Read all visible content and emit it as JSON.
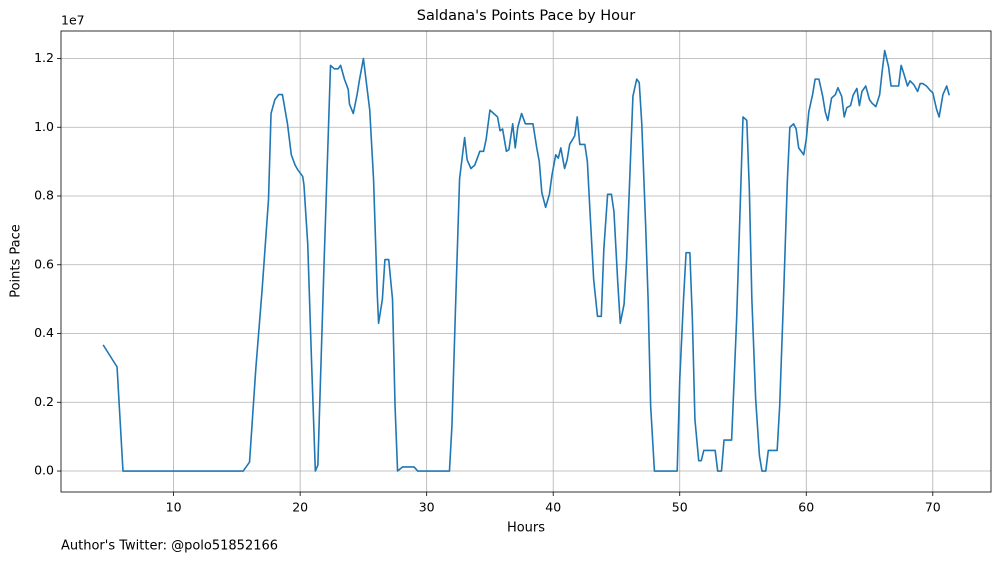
{
  "chart_data": {
    "type": "line",
    "title": "Saldana's Points Pace by Hour",
    "x_label": "Hours",
    "y_label": "Points Pace",
    "y_offset_label": "1e7",
    "annotation": "Author's Twitter: @polo51852166",
    "color": "#1f77b4",
    "grid": true,
    "xlim": [
      1.1,
      74.6
    ],
    "ylim": [
      -0.061,
      1.28
    ],
    "xticks": [
      10,
      20,
      30,
      40,
      50,
      60,
      70
    ],
    "yticks": [
      {
        "value": 0,
        "label": "0.0"
      },
      {
        "value": 0.2,
        "label": "0.2"
      },
      {
        "value": 0.4,
        "label": "0.4"
      },
      {
        "value": 0.6,
        "label": "0.6"
      },
      {
        "value": 0.8,
        "label": "0.8"
      },
      {
        "value": 1.0,
        "label": "1.0"
      },
      {
        "value": 1.2,
        "label": "1.2"
      }
    ],
    "x": [
      4.43,
      5.53,
      6.0,
      15.5,
      16.0,
      16.5,
      17.0,
      17.5,
      17.7,
      18.0,
      18.3,
      18.6,
      19.0,
      19.3,
      19.6,
      19.8,
      20.2,
      20.3,
      20.6,
      20.9,
      21.2,
      21.4,
      21.9,
      22.4,
      22.7,
      23.0,
      23.2,
      23.5,
      23.8,
      23.9,
      24.2,
      24.5,
      24.7,
      25.0,
      25.2,
      25.5,
      25.8,
      26.1,
      26.2,
      26.5,
      26.7,
      27.0,
      27.3,
      27.5,
      27.7,
      28.1,
      28.3,
      29.0,
      29.3,
      31.8,
      32.0,
      32.3,
      32.6,
      33.0,
      33.2,
      33.5,
      33.8,
      34.2,
      34.5,
      34.7,
      35.0,
      35.3,
      35.6,
      35.8,
      36.0,
      36.3,
      36.5,
      36.8,
      37.0,
      37.2,
      37.5,
      37.8,
      38.1,
      38.4,
      38.7,
      38.9,
      39.1,
      39.4,
      39.7,
      39.9,
      40.2,
      40.4,
      40.6,
      40.9,
      41.1,
      41.3,
      41.7,
      41.9,
      42.1,
      42.5,
      42.7,
      42.9,
      43.2,
      43.5,
      43.8,
      44.0,
      44.3,
      44.6,
      44.8,
      45.1,
      45.3,
      45.6,
      45.8,
      46.1,
      46.3,
      46.6,
      46.8,
      47.0,
      47.3,
      47.5,
      47.7,
      48.0,
      49.8,
      50.0,
      50.3,
      50.5,
      50.8,
      51.0,
      51.2,
      51.5,
      51.7,
      51.9,
      52.6,
      52.8,
      53.0,
      53.3,
      53.5,
      54.1,
      54.3,
      54.5,
      55.0,
      55.3,
      55.5,
      55.7,
      56.0,
      56.3,
      56.5,
      56.8,
      57.0,
      57.7,
      57.9,
      58.2,
      58.5,
      58.7,
      59.0,
      59.2,
      59.4,
      59.8,
      60.0,
      60.2,
      60.5,
      60.7,
      61.0,
      61.3,
      61.5,
      61.7,
      62.0,
      62.3,
      62.5,
      62.8,
      63.0,
      63.2,
      63.5,
      63.7,
      64.0,
      64.2,
      64.4,
      64.7,
      65.0,
      65.2,
      65.5,
      65.8,
      66.0,
      66.2,
      66.5,
      66.7,
      67.0,
      67.3,
      67.5,
      67.7,
      68.0,
      68.2,
      68.5,
      68.8,
      69.0,
      69.2,
      69.5,
      69.8,
      70.0,
      70.3,
      70.5,
      70.8,
      71.1,
      71.3
    ],
    "values": [
      0.367,
      0.303,
      0,
      0,
      0.026,
      0.3,
      0.53,
      0.79,
      1.04,
      1.08,
      1.095,
      1.095,
      1.01,
      0.92,
      0.89,
      0.877,
      0.857,
      0.833,
      0.66,
      0.32,
      0,
      0.017,
      0.615,
      1.18,
      1.17,
      1.17,
      1.18,
      1.14,
      1.11,
      1.067,
      1.04,
      1.095,
      1.14,
      1.2,
      1.14,
      1.05,
      0.85,
      0.51,
      0.43,
      0.5,
      0.615,
      0.615,
      0.5,
      0.19,
      0,
      0.012,
      0.012,
      0.012,
      0,
      0,
      0.134,
      0.5,
      0.85,
      0.97,
      0.905,
      0.88,
      0.89,
      0.93,
      0.93,
      0.965,
      1.05,
      1.04,
      1.03,
      0.99,
      0.995,
      0.93,
      0.935,
      1.01,
      0.94,
      1.0,
      1.04,
      1.01,
      1.01,
      1.01,
      0.94,
      0.9,
      0.81,
      0.767,
      0.805,
      0.86,
      0.92,
      0.91,
      0.94,
      0.88,
      0.905,
      0.95,
      0.975,
      1.03,
      0.95,
      0.95,
      0.9,
      0.76,
      0.556,
      0.45,
      0.45,
      0.645,
      0.805,
      0.805,
      0.755,
      0.55,
      0.43,
      0.485,
      0.615,
      0.9,
      1.09,
      1.14,
      1.13,
      1.01,
      0.72,
      0.5,
      0.19,
      0,
      0,
      0.265,
      0.5,
      0.635,
      0.635,
      0.44,
      0.15,
      0.03,
      0.03,
      0.06,
      0.06,
      0.06,
      0,
      0,
      0.09,
      0.09,
      0.265,
      0.445,
      1.03,
      1.02,
      0.82,
      0.5,
      0.21,
      0.044,
      0,
      0,
      0.06,
      0.06,
      0.19,
      0.5,
      0.84,
      1.0,
      1.01,
      0.995,
      0.94,
      0.92,
      0.965,
      1.045,
      1.095,
      1.14,
      1.14,
      1.09,
      1.045,
      1.02,
      1.085,
      1.095,
      1.115,
      1.09,
      1.03,
      1.057,
      1.063,
      1.093,
      1.113,
      1.063,
      1.104,
      1.12,
      1.08,
      1.07,
      1.06,
      1.095,
      1.163,
      1.223,
      1.177,
      1.12,
      1.12,
      1.12,
      1.18,
      1.157,
      1.12,
      1.135,
      1.124,
      1.104,
      1.127,
      1.127,
      1.12,
      1.107,
      1.1,
      1.052,
      1.03,
      1.095,
      1.12,
      1.093
    ]
  }
}
